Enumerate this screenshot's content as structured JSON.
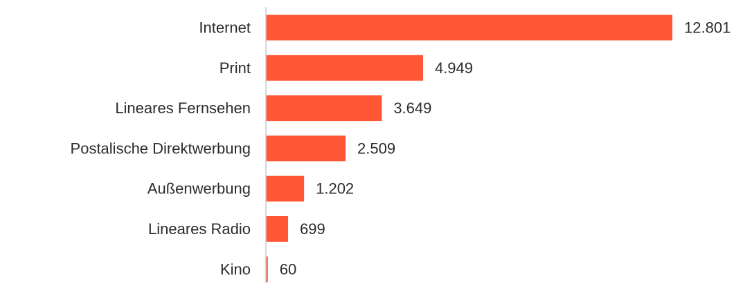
{
  "chart_data": {
    "type": "bar",
    "orientation": "horizontal",
    "categories": [
      "Internet",
      "Print",
      "Lineares Fernsehen",
      "Postalische Direktwerbung",
      "Außenwerbung",
      "Lineares Radio",
      "Kino"
    ],
    "values": [
      12801,
      4949,
      3649,
      2509,
      1202,
      699,
      60
    ],
    "value_labels": [
      "12.801",
      "4.949",
      "3.649",
      "2.509",
      "1.202",
      "699",
      "60"
    ],
    "xlim": [
      0,
      12801
    ],
    "grid": false,
    "legend": "none",
    "bar_color": "#ff5733",
    "title": "",
    "xlabel": "",
    "ylabel": ""
  }
}
